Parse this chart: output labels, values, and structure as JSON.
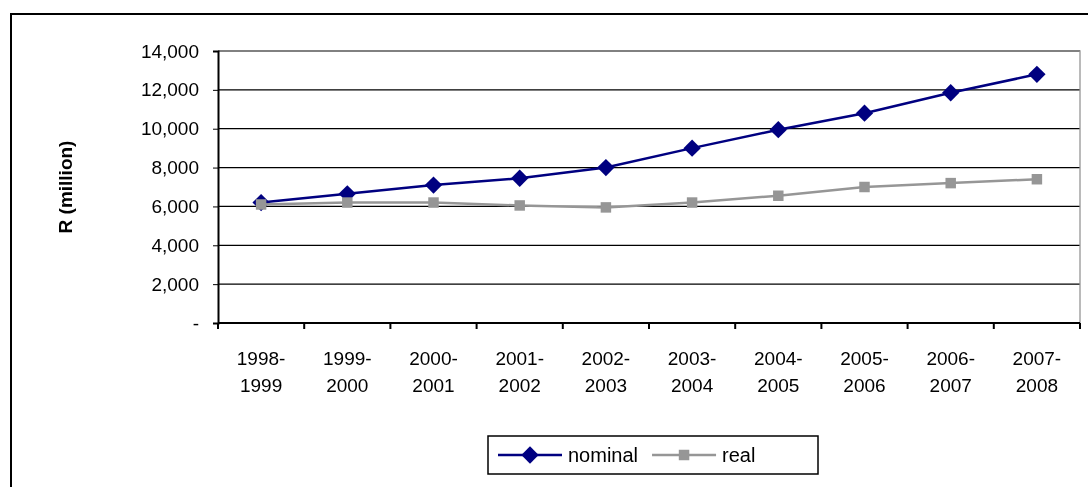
{
  "chart_data": {
    "type": "line",
    "ylabel": "R (million)",
    "categories": [
      "1998-1999",
      "1999-2000",
      "2000-2001",
      "2001-2002",
      "2002-2003",
      "2003-2004",
      "2004-2005",
      "2005-2006",
      "2006-2007",
      "2007-2008"
    ],
    "series": [
      {
        "name": "nominal",
        "color": "#000080",
        "marker": "diamond",
        "values": [
          6200,
          6650,
          7100,
          7450,
          8000,
          9000,
          9950,
          10800,
          11850,
          12800
        ]
      },
      {
        "name": "real",
        "color": "#969696",
        "marker": "square",
        "values": [
          6100,
          6200,
          6200,
          6050,
          5950,
          6200,
          6550,
          7000,
          7200,
          7400
        ]
      }
    ],
    "ylim": [
      0,
      14000
    ],
    "yticks": [
      {
        "value": 0,
        "label": "-"
      },
      {
        "value": 2000,
        "label": "2,000"
      },
      {
        "value": 4000,
        "label": "4,000"
      },
      {
        "value": 6000,
        "label": "6,000"
      },
      {
        "value": 8000,
        "label": "8,000"
      },
      {
        "value": 10000,
        "label": "10,000"
      },
      {
        "value": 12000,
        "label": "12,000"
      },
      {
        "value": 14000,
        "label": "14,000"
      }
    ],
    "grid": "y",
    "legend": "bottom",
    "line_style": "solid"
  }
}
